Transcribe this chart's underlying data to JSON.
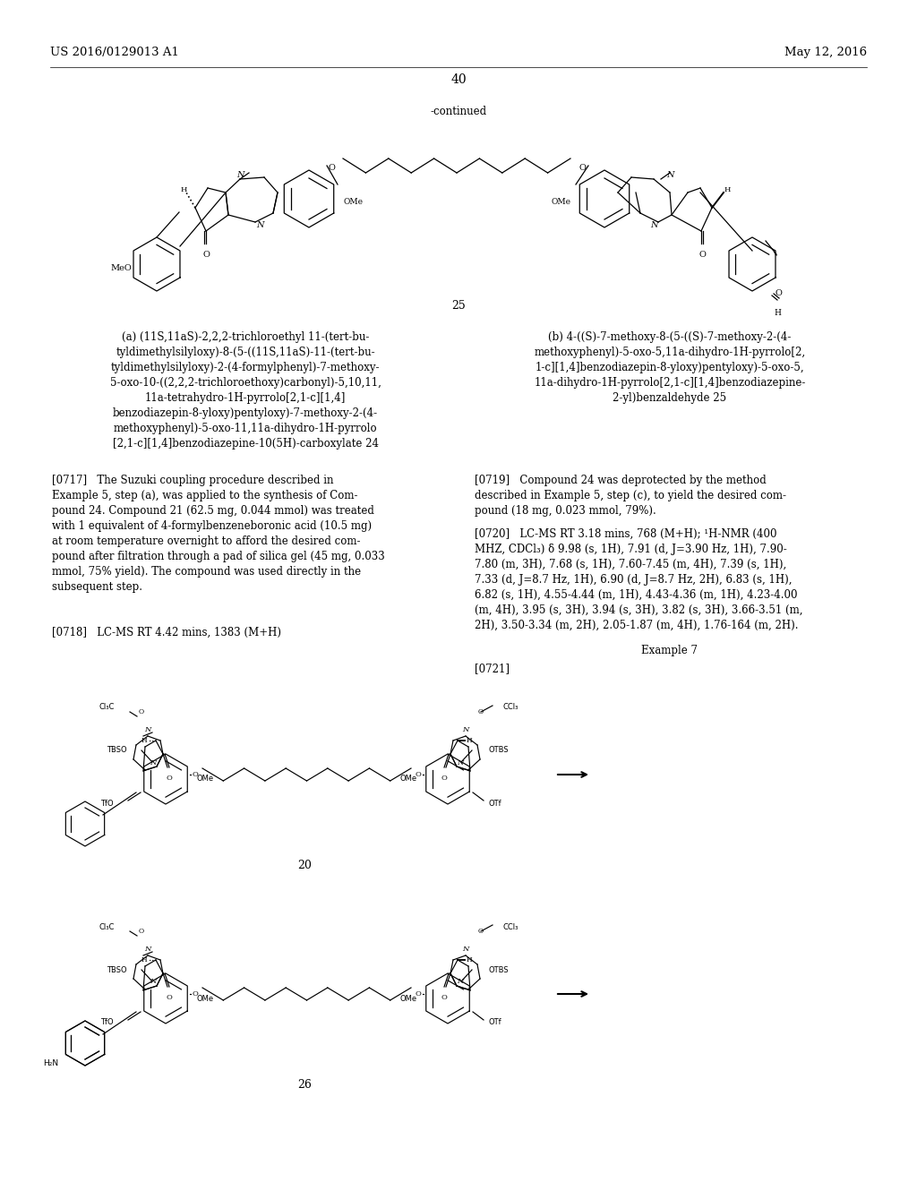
{
  "bg_color": "#ffffff",
  "page_width": 10.24,
  "page_height": 13.2,
  "header_left": "US 2016/0129013 A1",
  "header_right": "May 12, 2016",
  "page_number": "40",
  "continued_label": "-continued",
  "compound_number_1": "25",
  "compound_number_2": "20",
  "compound_number_3": "26",
  "caption_a_title": "(a) (11S,11aS)-2,2,2-trichloroethyl 11-(tert-bu-\ntyldimethylsilyloxy)-8-(5-((11S,11aS)-11-(tert-bu-\ntyldimethylsilyloxy)-2-(4-formylphenyl)-7-methoxy-\n5-oxo-10-((2,2,2-trichloroethoxy)carbonyl)-5,10,11,\n11a-tetrahydro-1H-pyrrolo[2,1-c][1,4]\nbenzodiazepin-8-yloxy)pentyloxy)-7-methoxy-2-(4-\nmethoxyphenyl)-5-oxo-11,11a-dihydro-1H-pyrrolo\n[2,1-c][1,4]benzodiazepine-10(5H)-carboxylate 24",
  "caption_b_title": "(b) 4-((S)-7-methoxy-8-(5-((S)-7-methoxy-2-(4-\nmethoxyphenyl)-5-oxo-5,11a-dihydro-1H-pyrrolo[2,\n1-c][1,4]benzodiazepin-8-yloxy)pentyloxy)-5-oxo-5,\n11a-dihydro-1H-pyrrolo[2,1-c][1,4]benzodiazepine-\n2-yl)benzaldehyde 25",
  "para_0717_label": "[0717]",
  "para_0717_text": "The Suzuki coupling procedure described in\nExample 5, step (a), was applied to the synthesis of Com-\npound 24. Compound 21 (62.5 mg, 0.044 mmol) was treated\nwith 1 equivalent of 4-formylbenzeneboronic acid (10.5 mg)\nat room temperature overnight to afford the desired com-\npound after filtration through a pad of silica gel (45 mg, 0.033\nmmol, 75% yield). The compound was used directly in the\nsubsequent step.",
  "para_0718_label": "[0718]",
  "para_0718_text": "LC-MS RT 4.42 mins, 1383 (M+H)",
  "para_0719_label": "[0719]",
  "para_0719_text": "Compound 24 was deprotected by the method\ndescribed in Example 5, step (c), to yield the desired com-\npound (18 mg, 0.023 mmol, 79%).",
  "para_0720_label": "[0720]",
  "para_0720_text": "LC-MS RT 3.18 mins, 768 (M+H); ¹H-NMR (400\nMHZ, CDCl₃) δ 9.98 (s, 1H), 7.91 (d, J=3.90 Hz, 1H), 7.90-\n7.80 (m, 3H), 7.68 (s, 1H), 7.60-7.45 (m, 4H), 7.39 (s, 1H),\n7.33 (d, J=8.7 Hz, 1H), 6.90 (d, J=8.7 Hz, 2H), 6.83 (s, 1H),\n6.82 (s, 1H), 4.55-4.44 (m, 1H), 4.43-4.36 (m, 1H), 4.23-4.00\n(m, 4H), 3.95 (s, 3H), 3.94 (s, 3H), 3.82 (s, 3H), 3.66-3.51 (m,\n2H), 3.50-3.34 (m, 2H), 2.05-1.87 (m, 4H), 1.76-164 (m, 2H).",
  "example7_label": "Example 7",
  "para_0721_label": "[0721]",
  "font_size_header": 9.5,
  "font_size_body": 8.5,
  "font_size_caption": 8.5,
  "font_size_page_number": 10,
  "font_size_compound_number": 9
}
